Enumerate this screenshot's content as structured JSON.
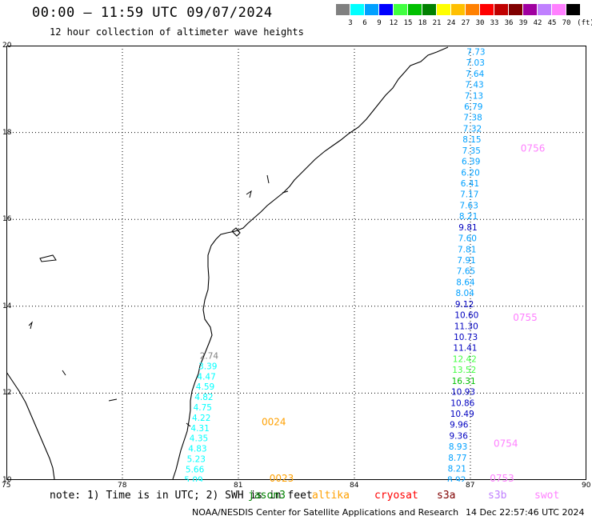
{
  "title": "00:00 – 11:59 UTC 09/07/2024",
  "subtitle": "12 hour collection of altimeter wave heights",
  "scale": {
    "unit": "(ft)",
    "bins": [
      {
        "label": "3",
        "color": "#808080"
      },
      {
        "label": "6",
        "color": "#00ffff"
      },
      {
        "label": "9",
        "color": "#00a0ff"
      },
      {
        "label": "12",
        "color": "#0000ff"
      },
      {
        "label": "15",
        "color": "#40ff40"
      },
      {
        "label": "18",
        "color": "#00c000"
      },
      {
        "label": "21",
        "color": "#008000"
      },
      {
        "label": "24",
        "color": "#ffff00"
      },
      {
        "label": "27",
        "color": "#ffc000"
      },
      {
        "label": "30",
        "color": "#ff8000"
      },
      {
        "label": "33",
        "color": "#ff0000"
      },
      {
        "label": "36",
        "color": "#c00000"
      },
      {
        "label": "39",
        "color": "#800000"
      },
      {
        "label": "42",
        "color": "#a000a0"
      },
      {
        "label": "45",
        "color": "#c080ff"
      },
      {
        "label": "70",
        "color": "#ff80ff"
      },
      {
        "label": "",
        "color": "#000000"
      }
    ]
  },
  "axes": {
    "x_ticks": [
      "75",
      "78",
      "81",
      "84",
      "87",
      "90"
    ],
    "y_ticks": [
      "20",
      "18",
      "16",
      "14",
      "12",
      "10"
    ],
    "lon_range": [
      75,
      90
    ],
    "lat_range": [
      10,
      20
    ]
  },
  "tracks": [
    {
      "lon": 86.9,
      "lat": 19.9,
      "values": [
        "7.73",
        "7.03",
        "7.64",
        "7.43",
        "7.13",
        "6.79",
        "7.38",
        "7.32",
        "8.15",
        "7.35",
        "6.39",
        "6.20",
        "6.41",
        "7.17",
        "7.63",
        "8.21",
        "9.81",
        "7.60",
        "7.81",
        "7.91",
        "7.65",
        "8.64",
        "8.04",
        "9.12",
        "10.60",
        "11.30",
        "10.73",
        "11.41",
        "12.42",
        "13.52",
        "16.31",
        "10.93",
        "10.86",
        "10.49",
        "9.96",
        "9.36",
        "8.93",
        "8.77",
        "8.21",
        "8.92"
      ],
      "colors": [
        "#00a0ff",
        "#00a0ff",
        "#00a0ff",
        "#00a0ff",
        "#00a0ff",
        "#00a0ff",
        "#00a0ff",
        "#00a0ff",
        "#00a0ff",
        "#00a0ff",
        "#00a0ff",
        "#00a0ff",
        "#00a0ff",
        "#00a0ff",
        "#00a0ff",
        "#00a0ff",
        "#0000c0",
        "#00a0ff",
        "#00a0ff",
        "#00a0ff",
        "#00a0ff",
        "#00a0ff",
        "#00a0ff",
        "#0000c0",
        "#0000c0",
        "#0000c0",
        "#0000c0",
        "#0000c0",
        "#40ff40",
        "#40ff40",
        "#00c000",
        "#0000c0",
        "#0000c0",
        "#0000c0",
        "#0000c0",
        "#0000c0",
        "#00a0ff",
        "#00a0ff",
        "#00a0ff",
        "#00a0ff"
      ]
    },
    {
      "lon": 80.0,
      "lat": 12.9,
      "values": [
        "2.74",
        "3.39",
        "4.47",
        "4.59",
        "4.82",
        "4.75",
        "4.22",
        "4.31",
        "4.35",
        "4.83",
        "5.23",
        "5.66",
        "5.09"
      ],
      "colors": [
        "#808080",
        "#00ffff",
        "#00ffff",
        "#00ffff",
        "#00ffff",
        "#00ffff",
        "#00ffff",
        "#00ffff",
        "#00ffff",
        "#00ffff",
        "#00ffff",
        "#00ffff",
        "#00ffff"
      ]
    }
  ],
  "time_labels": [
    {
      "text": "0756",
      "color": "#ff80ff",
      "lon": 88.3,
      "lat": 17.6
    },
    {
      "text": "0755",
      "color": "#ff80ff",
      "lon": 88.1,
      "lat": 13.7
    },
    {
      "text": "0754",
      "color": "#ff80ff",
      "lon": 87.6,
      "lat": 10.8
    },
    {
      "text": "0753",
      "color": "#ff80ff",
      "lon": 87.5,
      "lat": 10.0
    },
    {
      "text": "0024",
      "color": "#ffa000",
      "lon": 81.6,
      "lat": 11.3
    },
    {
      "text": "0023",
      "color": "#ffa000",
      "lon": 81.8,
      "lat": 10.0
    }
  ],
  "note": "note: 1) Time is in UTC; 2) SWH is in feet",
  "satellites": [
    {
      "name": "jason3",
      "color": "#008000"
    },
    {
      "name": "altika",
      "color": "#ffa000"
    },
    {
      "name": "cryosat",
      "color": "#ff0000"
    },
    {
      "name": "s3a",
      "color": "#800000"
    },
    {
      "name": "s3b",
      "color": "#c080ff"
    },
    {
      "name": "swot",
      "color": "#ff80ff"
    }
  ],
  "footer": "NOAA/NESDIS Center for Satellite Applications and Research",
  "footer_time": "14 Dec 22:57:46 UTC 2024"
}
